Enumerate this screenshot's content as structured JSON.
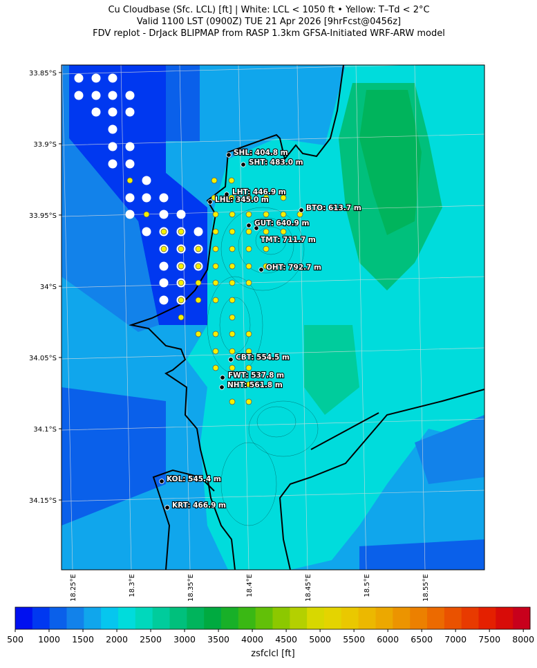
{
  "header": {
    "lines": [
      "Cu Cloudbase (Sfc. LCL) [ft]  |  White: LCL < 1050 ft • Yellow: T–Td < 2°C",
      "Valid 1100 LST (0900Z) TUE 21 Apr 2026 [9hrFcst@0456z]",
      "FDV replot - DrJack BLIPMAP from RASP 1.3km GFSA-Initiated WRF-ARW model"
    ]
  },
  "map": {
    "xlim": [
      18.2406,
      18.6006
    ],
    "ylim": [
      -34.199,
      -33.8447
    ],
    "yticks": [
      {
        "value": -33.85,
        "label": "33.85°S"
      },
      {
        "value": -33.9,
        "label": "33.9°S"
      },
      {
        "value": -33.95,
        "label": "33.95°S"
      },
      {
        "value": -34.0,
        "label": "34°S"
      },
      {
        "value": -34.05,
        "label": "34.05°S"
      },
      {
        "value": -34.1,
        "label": "34.1°S"
      },
      {
        "value": -34.15,
        "label": "34.15°S"
      }
    ],
    "xticks": [
      {
        "value": 18.25,
        "label": "18.25°E"
      },
      {
        "value": 18.3,
        "label": "18.3°E"
      },
      {
        "value": 18.35,
        "label": "18.35°E"
      },
      {
        "value": 18.4,
        "label": "18.4°E"
      },
      {
        "value": 18.45,
        "label": "18.45°E"
      },
      {
        "value": 18.5,
        "label": "18.5°E"
      },
      {
        "value": 18.55,
        "label": "18.55°E"
      }
    ],
    "stations": [
      "SHL: 404.8 m",
      "SHT: 483.0 m",
      "LHT: 446.9 m",
      "LHL: 345.0 m",
      "BTO: 613.7 m",
      "GUT: 640.9 m",
      "TMT: 711.7 m",
      "OHT: 792.7 m",
      "CBT: 554.5 m",
      "FWT: 537.8 m",
      "NHT: 561.8 m",
      "KOL: 545.4 m",
      "KRT: 466.9 m"
    ]
  },
  "colorbar": {
    "label": "zsfclcl [ft]",
    "lim": [
      500,
      8100
    ],
    "ticks": [
      500,
      1000,
      1500,
      2000,
      2500,
      3000,
      3500,
      4000,
      4500,
      5000,
      5500,
      6000,
      6500,
      7000,
      7500,
      8000
    ],
    "colors": [
      "#0010f0",
      "#0038f0",
      "#0a60ea",
      "#1282ea",
      "#10a6ec",
      "#06c6ee",
      "#00dcdc",
      "#00d8bc",
      "#00cc9c",
      "#00c07c",
      "#00b45c",
      "#00aa40",
      "#18b028",
      "#3ab814",
      "#62c008",
      "#8cc800",
      "#b4d000",
      "#d8d800",
      "#e4d400",
      "#eac800",
      "#ecb800",
      "#eca800",
      "#ec9400",
      "#ec8000",
      "#ec6a00",
      "#ea5200",
      "#e83a00",
      "#e42000",
      "#d80c08",
      "#c8001c"
    ]
  }
}
